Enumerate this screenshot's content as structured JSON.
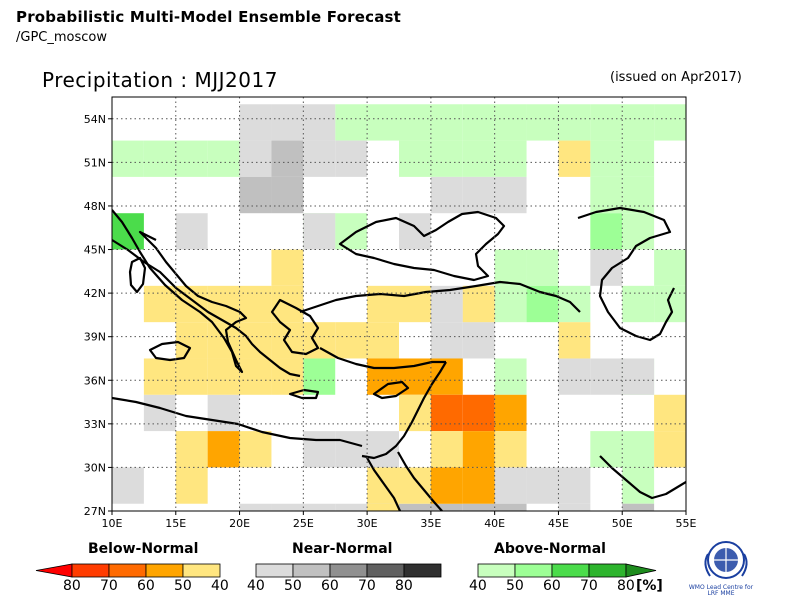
{
  "header": {
    "title": "Probabilistic Multi-Model Ensemble Forecast",
    "subtitle": "/GPC_moscow"
  },
  "variable_title": "Precipitation : MJJ2017",
  "issued": "(issued on Apr2017)",
  "map": {
    "region": "Mediterranean / Middle East",
    "lon_range": [
      10,
      55
    ],
    "lat_range": [
      27,
      55.5
    ],
    "lat_labels": [
      "54N",
      "51N",
      "48N",
      "45N",
      "42N",
      "39N",
      "36N",
      "33N",
      "30N",
      "27N"
    ],
    "lon_labels": [
      "10E",
      "15E",
      "20E",
      "25E",
      "30E",
      "35E",
      "40E",
      "45E",
      "50E",
      "55E"
    ],
    "grid": "dotted",
    "colors": {
      "below_40": "#ffe680",
      "below_50": "#ffa500",
      "below_60": "#ff6a00",
      "near_40": "#dcdcdc",
      "near_50": "#c0c0c0",
      "above_40": "#c8ffbe",
      "above_50": "#9dff96",
      "above_60": "#4bdc4b"
    }
  },
  "legend": {
    "below_label": "Below-Normal",
    "near_label": "Near-Normal",
    "above_label": "Above-Normal",
    "below_ticks": [
      "80",
      "70",
      "60",
      "50",
      "40"
    ],
    "near_ticks": [
      "40",
      "50",
      "60",
      "70",
      "80"
    ],
    "above_ticks": [
      "40",
      "50",
      "60",
      "70",
      "80"
    ],
    "unit": "[%]",
    "below_colors": [
      "#ff0000",
      "#ff3c00",
      "#ff6a00",
      "#ffa500",
      "#ffe680"
    ],
    "near_colors": [
      "#dcdcdc",
      "#c0c0c0",
      "#909090",
      "#606060",
      "#303030"
    ],
    "above_colors": [
      "#c8ffbe",
      "#9dff96",
      "#4bdc4b",
      "#2db42d",
      "#1e8c1e"
    ]
  },
  "logo": {
    "caption": "WMO Lead Centre for LRF MME"
  }
}
